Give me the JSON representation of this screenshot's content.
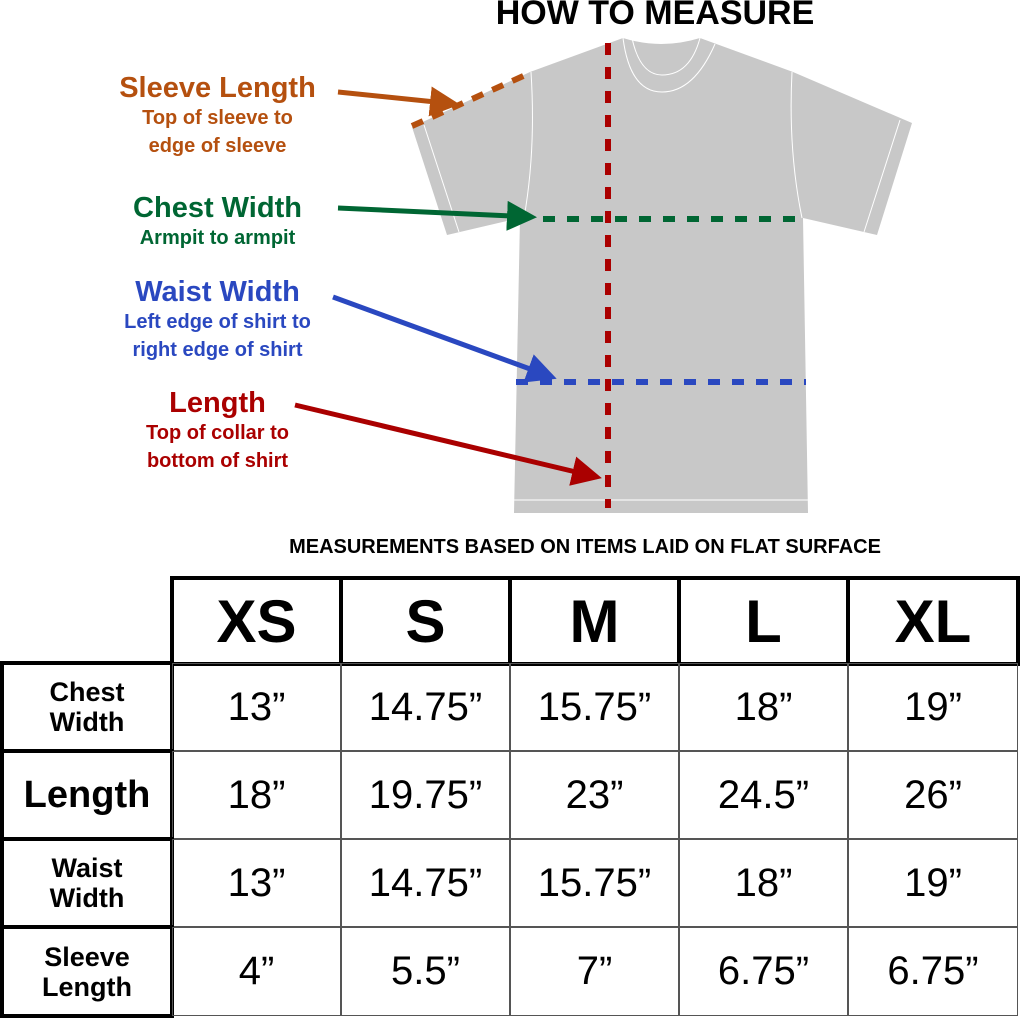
{
  "title": "HOW TO MEASURE",
  "colors": {
    "sleeve": "#b5500f",
    "chest": "#006633",
    "waist": "#2a48c0",
    "length": "#aa0000",
    "shirt": "#c8c8c8"
  },
  "labels": {
    "sleeve": {
      "heading": "Sleeve Length",
      "line1": "Top of sleeve to",
      "line2": "edge of sleeve"
    },
    "chest": {
      "heading": "Chest Width",
      "line1": "Armpit to armpit"
    },
    "waist": {
      "heading": "Waist Width",
      "line1": "Left edge of shirt to",
      "line2": "right edge of shirt"
    },
    "length": {
      "heading": "Length",
      "line1": "Top of collar to",
      "line2": "bottom of shirt"
    }
  },
  "note": "MEASUREMENTS BASED ON ITEMS LAID ON FLAT SURFACE",
  "table": {
    "sizes": [
      "XS",
      "S",
      "M",
      "L",
      "XL"
    ],
    "rows": [
      {
        "label1": "Chest",
        "label2": "Width",
        "values": [
          "13”",
          "14.75”",
          "15.75”",
          "18”",
          "19”"
        ]
      },
      {
        "label1": "Length",
        "label2": "",
        "values": [
          "18”",
          "19.75”",
          "23”",
          "24.5”",
          "26”"
        ]
      },
      {
        "label1": "Waist",
        "label2": "Width",
        "values": [
          "13”",
          "14.75”",
          "15.75”",
          "18”",
          "19”"
        ]
      },
      {
        "label1": "Sleeve",
        "label2": "Length",
        "values": [
          "4”",
          "5.5”",
          "7”",
          "6.75”",
          "6.75”"
        ]
      }
    ]
  }
}
